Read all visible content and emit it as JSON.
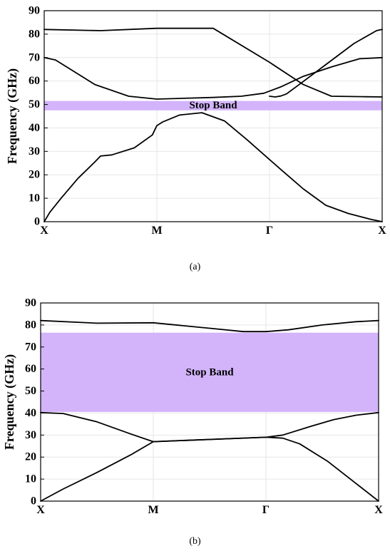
{
  "chart_data": [
    {
      "type": "line",
      "caption": "(a)",
      "ylabel": "Frequency (GHz)",
      "xlabel": "",
      "ylim": [
        0,
        90
      ],
      "yticks": [
        0,
        10,
        20,
        30,
        40,
        50,
        60,
        70,
        80,
        90
      ],
      "xticks": [
        "X",
        "M",
        "Γ",
        "X"
      ],
      "grid": true,
      "band": {
        "label": "Stop Band",
        "y0": 47.5,
        "y1": 51.5,
        "color": "#d3b4fa"
      },
      "series": [
        {
          "x": [
            0,
            0.05,
            0.15,
            0.3,
            0.45,
            0.5,
            0.6,
            0.8,
            0.96,
            1.0,
            1.05,
            1.2,
            1.4,
            1.6,
            1.8,
            2.0,
            2.1,
            2.3,
            2.5,
            2.7,
            2.9,
            3.0
          ],
          "y": [
            0,
            4,
            10,
            18.5,
            25.5,
            28,
            28.5,
            31.5,
            37,
            41,
            42.5,
            45.5,
            46.5,
            43,
            35,
            26.5,
            22.3,
            14,
            7,
            3.5,
            1,
            0
          ]
        },
        {
          "x": [
            0,
            0.1,
            0.25,
            0.45,
            0.75,
            1.0,
            1.0,
            1.5,
            1.75,
            1.95,
            2.1,
            2.3,
            2.55,
            2.8,
            3.0
          ],
          "y": [
            70,
            69,
            64.5,
            58.5,
            53.5,
            52.3,
            52.3,
            53,
            53.5,
            54.8,
            57.5,
            62,
            66,
            69.5,
            70
          ]
        },
        {
          "x": [
            0,
            0.5,
            1.0,
            1.5,
            2.0,
            2.3,
            2.55,
            2.85,
            3.0
          ],
          "y": [
            82,
            81.5,
            82.5,
            82.5,
            68,
            58.5,
            53.5,
            53.3,
            53.2
          ]
        },
        {
          "x": [
            2.0,
            2.05,
            2.1,
            2.15,
            2.25,
            2.5,
            2.75,
            2.95,
            3.0
          ],
          "y": [
            53.5,
            53.2,
            53.6,
            54.5,
            58,
            67,
            76,
            81.5,
            82
          ]
        }
      ]
    },
    {
      "type": "line",
      "caption": "(b)",
      "ylabel": "Frequency (GHz)",
      "xlabel": "",
      "ylim": [
        0,
        90
      ],
      "yticks": [
        0,
        10,
        20,
        30,
        40,
        50,
        60,
        70,
        80,
        90
      ],
      "xticks": [
        "X",
        "M",
        "Γ",
        "X"
      ],
      "grid": true,
      "band": {
        "label": "Stop Band",
        "y0": 40.5,
        "y1": 76.5,
        "color": "#d3b4fa"
      },
      "series": [
        {
          "x": [
            0,
            0.2,
            0.5,
            0.8,
            1.0,
            1.5,
            2.0,
            2.15,
            2.3,
            2.55,
            2.8,
            3.0
          ],
          "y": [
            0,
            5.5,
            13,
            21,
            27,
            28,
            29,
            28.6,
            26,
            18,
            8,
            0
          ]
        },
        {
          "x": [
            0,
            0.2,
            0.5,
            0.8,
            1.0,
            1.5,
            2.0,
            2.15,
            2.4,
            2.6,
            2.8,
            3.0
          ],
          "y": [
            40.2,
            39.8,
            36,
            30.5,
            27,
            28,
            29,
            30,
            34,
            37,
            39,
            40.2
          ]
        },
        {
          "x": [
            0,
            0.5,
            1.0,
            1.5,
            1.8,
            2.0,
            2.2,
            2.5,
            2.8,
            3.0
          ],
          "y": [
            82,
            80.8,
            81,
            78.5,
            77,
            77,
            77.8,
            80,
            81.5,
            82
          ]
        }
      ]
    }
  ]
}
